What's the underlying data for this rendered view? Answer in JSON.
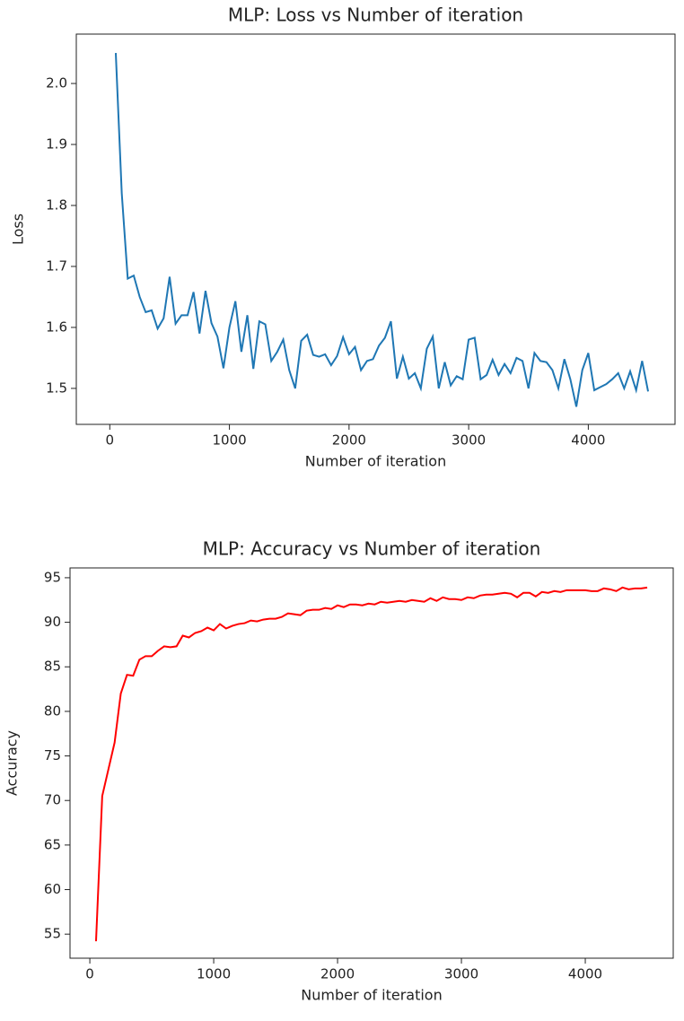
{
  "chart_data": [
    {
      "type": "line",
      "title": "MLP: Loss vs Number of iteration",
      "xlabel": "Number of iteration",
      "ylabel": "Loss",
      "x": [
        50,
        100,
        150,
        200,
        250,
        300,
        350,
        400,
        450,
        500,
        550,
        600,
        650,
        700,
        750,
        800,
        850,
        900,
        950,
        1000,
        1050,
        1100,
        1150,
        1200,
        1250,
        1300,
        1350,
        1400,
        1450,
        1500,
        1550,
        1600,
        1650,
        1700,
        1750,
        1800,
        1850,
        1900,
        1950,
        2000,
        2050,
        2100,
        2150,
        2200,
        2250,
        2300,
        2350,
        2400,
        2450,
        2500,
        2550,
        2600,
        2650,
        2700,
        2750,
        2800,
        2850,
        2900,
        2950,
        3000,
        3050,
        3100,
        3150,
        3200,
        3250,
        3300,
        3350,
        3400,
        3450,
        3500,
        3550,
        3600,
        3650,
        3700,
        3750,
        3800,
        3850,
        3900,
        3950,
        4000,
        4050,
        4100,
        4150,
        4200,
        4250,
        4300,
        4350,
        4400,
        4450,
        4500
      ],
      "series": [
        {
          "color": "#1f77b4",
          "values": [
            2.05,
            1.82,
            1.68,
            1.685,
            1.65,
            1.625,
            1.628,
            1.598,
            1.615,
            1.683,
            1.606,
            1.62,
            1.62,
            1.658,
            1.59,
            1.66,
            1.607,
            1.585,
            1.533,
            1.6,
            1.643,
            1.56,
            1.62,
            1.532,
            1.61,
            1.605,
            1.545,
            1.56,
            1.58,
            1.53,
            1.5,
            1.578,
            1.588,
            1.555,
            1.552,
            1.556,
            1.538,
            1.553,
            1.584,
            1.556,
            1.568,
            1.53,
            1.545,
            1.548,
            1.57,
            1.583,
            1.61,
            1.516,
            1.552,
            1.516,
            1.525,
            1.5,
            1.565,
            1.585,
            1.5,
            1.543,
            1.505,
            1.52,
            1.515,
            1.58,
            1.583,
            1.515,
            1.522,
            1.547,
            1.522,
            1.54,
            1.525,
            1.55,
            1.545,
            1.5,
            1.558,
            1.545,
            1.543,
            1.53,
            1.5,
            1.548,
            1.515,
            1.47,
            1.53,
            1.558,
            1.497,
            1.502,
            1.507,
            1.515,
            1.525,
            1.5,
            1.528,
            1.497,
            1.545,
            1.495
          ]
        }
      ],
      "xlim": [
        -280,
        4725
      ],
      "ylim": [
        1.441,
        2.081
      ],
      "xticks": [
        0,
        1000,
        2000,
        3000,
        4000
      ],
      "yticks": [
        1.5,
        1.6,
        1.7,
        1.8,
        1.9,
        {
          "value": 2,
          "label": "2.0"
        }
      ]
    },
    {
      "type": "line",
      "title": "MLP: Accuracy vs Number of iteration",
      "xlabel": "Number of iteration",
      "ylabel": "Accuracy",
      "x": [
        50,
        100,
        150,
        200,
        250,
        300,
        350,
        400,
        450,
        500,
        550,
        600,
        650,
        700,
        750,
        800,
        850,
        900,
        950,
        1000,
        1050,
        1100,
        1150,
        1200,
        1250,
        1300,
        1350,
        1400,
        1450,
        1500,
        1550,
        1600,
        1650,
        1700,
        1750,
        1800,
        1850,
        1900,
        1950,
        2000,
        2050,
        2100,
        2150,
        2200,
        2250,
        2300,
        2350,
        2400,
        2450,
        2500,
        2550,
        2600,
        2650,
        2700,
        2750,
        2800,
        2850,
        2900,
        2950,
        3000,
        3050,
        3100,
        3150,
        3200,
        3250,
        3300,
        3350,
        3400,
        3450,
        3500,
        3550,
        3600,
        3650,
        3700,
        3750,
        3800,
        3850,
        3900,
        3950,
        4000,
        4050,
        4100,
        4150,
        4200,
        4250,
        4300,
        4350,
        4400,
        4450,
        4500
      ],
      "series": [
        {
          "color": "#ff0000",
          "values": [
            54.2,
            70.5,
            73.5,
            76.5,
            82,
            84.1,
            84,
            85.8,
            86.2,
            86.2,
            86.8,
            87.3,
            87.2,
            87.3,
            88.5,
            88.3,
            88.8,
            89,
            89.4,
            89.1,
            89.8,
            89.3,
            89.6,
            89.8,
            89.9,
            90.2,
            90.1,
            90.3,
            90.4,
            90.4,
            90.6,
            91,
            90.9,
            90.8,
            91.3,
            91.4,
            91.4,
            91.6,
            91.5,
            91.9,
            91.7,
            92,
            92,
            91.9,
            92.1,
            92,
            92.3,
            92.2,
            92.3,
            92.4,
            92.3,
            92.5,
            92.4,
            92.3,
            92.7,
            92.4,
            92.8,
            92.6,
            92.6,
            92.5,
            92.8,
            92.7,
            93,
            93.1,
            93.1,
            93.2,
            93.3,
            93.2,
            92.8,
            93.3,
            93.3,
            92.9,
            93.4,
            93.3,
            93.5,
            93.4,
            93.6,
            93.6,
            93.6,
            93.6,
            93.5,
            93.5,
            93.8,
            93.7,
            93.5,
            93.9,
            93.7,
            93.8,
            93.8,
            93.9
          ]
        }
      ],
      "xlim": [
        -160,
        4710
      ],
      "ylim": [
        52.3,
        96.1
      ],
      "xticks": [
        0,
        1000,
        2000,
        3000,
        4000
      ],
      "yticks": [
        55,
        60,
        65,
        70,
        75,
        80,
        85,
        90,
        95
      ]
    }
  ]
}
